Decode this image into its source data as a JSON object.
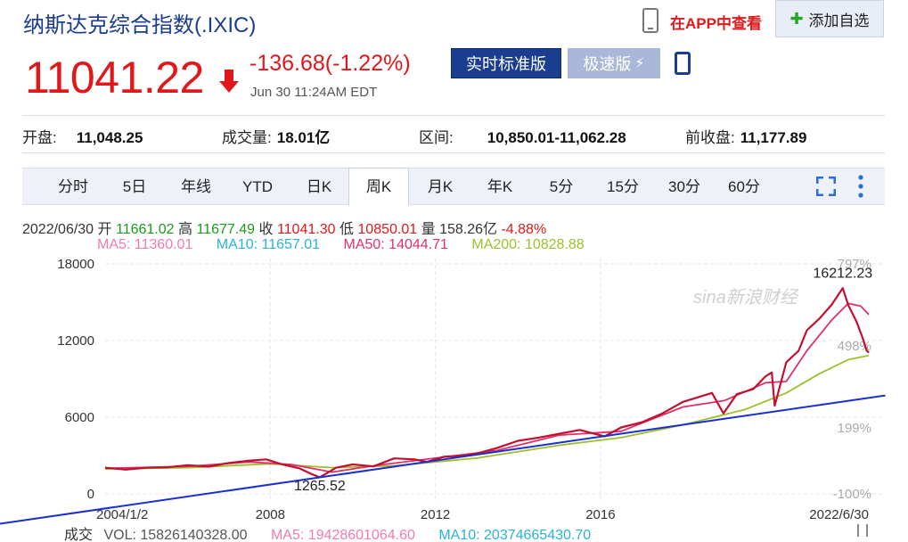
{
  "header": {
    "title": "纳斯达克综合指数(.IXIC)",
    "app_link": "在APP中查看",
    "watch_label": "添加自选",
    "price": "11041.22",
    "change": "-136.68(-1.22%)",
    "time": "Jun 30 11:24AM EDT",
    "realtime_label": "实时标准版",
    "fast_label": "极速版",
    "colors": {
      "up": "#e0181b",
      "brand": "#1a3d8f"
    }
  },
  "stats": [
    {
      "label": "开盘:",
      "value": "11,048.25"
    },
    {
      "label": "成交量:",
      "value": "18.01亿"
    },
    {
      "label": "区间:",
      "value": "10,850.01-11,062.28"
    },
    {
      "label": "前收盘:",
      "value": "11,177.89"
    }
  ],
  "tabs": [
    "分时",
    "5日",
    "年线",
    "YTD",
    "日K",
    "周K",
    "月K",
    "年K",
    "5分",
    "15分",
    "30分",
    "60分"
  ],
  "active_tab": "周K",
  "ohlc": {
    "date": "2022/06/30",
    "open_label": "开",
    "open": "11661.02",
    "high_label": "高",
    "high": "11677.49",
    "close_label": "收",
    "close": "11041.30",
    "low_label": "低",
    "low": "10850.01",
    "vol_label": "量",
    "vol": "158.26亿",
    "pct": "-4.88%"
  },
  "ma_legend": [
    {
      "label": "MA5: 11360.01",
      "color": "#f07cb0"
    },
    {
      "label": "MA10: 11657.01",
      "color": "#2ab3d8"
    },
    {
      "label": "MA50: 14044.71",
      "color": "#e0306a"
    },
    {
      "label": "MA200: 10828.88",
      "color": "#9cc02a"
    }
  ],
  "volume": {
    "label": "成交",
    "vol": "VOL: 15826140328.00",
    "ma5": "MA5: 19428601064.60",
    "ma10": "MA10: 20374665430.70"
  },
  "watermark": "sina新浪财经",
  "chart_data": {
    "type": "line",
    "title": "",
    "ylim": [
      0,
      18000
    ],
    "y_ticks": [
      0,
      6000,
      12000,
      18000
    ],
    "y_tick_labels": [
      "0",
      "6000",
      "12000",
      "18000"
    ],
    "right_ticks": [
      "797%",
      "498%",
      "199%",
      "-100%"
    ],
    "x_ticks": [
      "2004/1/2",
      "2008",
      "2012",
      "2016",
      "2022/6/30"
    ],
    "x_tick_years": [
      2004.0,
      2008.0,
      2012.0,
      2016.0,
      2022.5
    ],
    "xlim": [
      2004.0,
      2022.5
    ],
    "annotations": [
      {
        "text": "16212.23",
        "x": 2021.87,
        "y": 16212.23
      },
      {
        "text": "1265.52",
        "x": 2009.2,
        "y": 1265.52
      }
    ],
    "trendline": {
      "color": "#1a2fcf",
      "from": [
        2004.0,
        -800
      ],
      "to": [
        2022.9,
        7700
      ]
    },
    "series": [
      {
        "key": "price",
        "color": "#c0102e",
        "x": [
          2004.0,
          2004.5,
          2005.0,
          2005.5,
          2006.0,
          2006.5,
          2007.0,
          2007.5,
          2007.9,
          2008.3,
          2008.7,
          2009.0,
          2009.2,
          2009.6,
          2010.0,
          2010.5,
          2011.0,
          2011.5,
          2011.8,
          2012.2,
          2012.7,
          2013.0,
          2013.5,
          2014.0,
          2014.5,
          2015.0,
          2015.5,
          2016.1,
          2016.5,
          2017.0,
          2017.5,
          2018.0,
          2018.7,
          2018.98,
          2019.3,
          2019.7,
          2020.0,
          2020.15,
          2020.22,
          2020.5,
          2020.8,
          2021.0,
          2021.3,
          2021.6,
          2021.87,
          2022.0,
          2022.2,
          2022.35,
          2022.45,
          2022.5
        ],
        "y": [
          2050,
          1900,
          2050,
          2080,
          2250,
          2130,
          2420,
          2600,
          2700,
          2300,
          2000,
          1550,
          1300,
          2050,
          2300,
          2150,
          2780,
          2700,
          2500,
          2900,
          3000,
          3150,
          3600,
          4150,
          4400,
          4700,
          5000,
          4500,
          5200,
          5600,
          6300,
          7200,
          7900,
          6300,
          7800,
          8200,
          9200,
          9500,
          6900,
          10300,
          11200,
          12800,
          13700,
          14800,
          16100,
          14800,
          13500,
          12200,
          11200,
          11041
        ]
      },
      {
        "key": "ma50",
        "color": "#e0306a",
        "x": [
          2004.0,
          2006.0,
          2007.5,
          2008.5,
          2009.5,
          2010.5,
          2012.0,
          2013.5,
          2015.0,
          2016.5,
          2018.0,
          2019.0,
          2020.0,
          2020.5,
          2021.0,
          2021.6,
          2022.0,
          2022.3,
          2022.5
        ],
        "y": [
          2000,
          2150,
          2500,
          2300,
          1700,
          2200,
          2800,
          3400,
          4600,
          4900,
          6800,
          7300,
          8700,
          8800,
          11200,
          13600,
          14900,
          14700,
          14045
        ]
      },
      {
        "key": "ma200",
        "color": "#9cc02a",
        "x": [
          2004.0,
          2006.0,
          2008.0,
          2009.5,
          2011.0,
          2013.0,
          2015.0,
          2016.5,
          2018.0,
          2019.5,
          2020.5,
          2021.3,
          2022.0,
          2022.5
        ],
        "y": [
          1950,
          2050,
          2350,
          2050,
          2200,
          2800,
          3800,
          4400,
          5400,
          6600,
          7900,
          9400,
          10500,
          10829
        ]
      }
    ]
  }
}
